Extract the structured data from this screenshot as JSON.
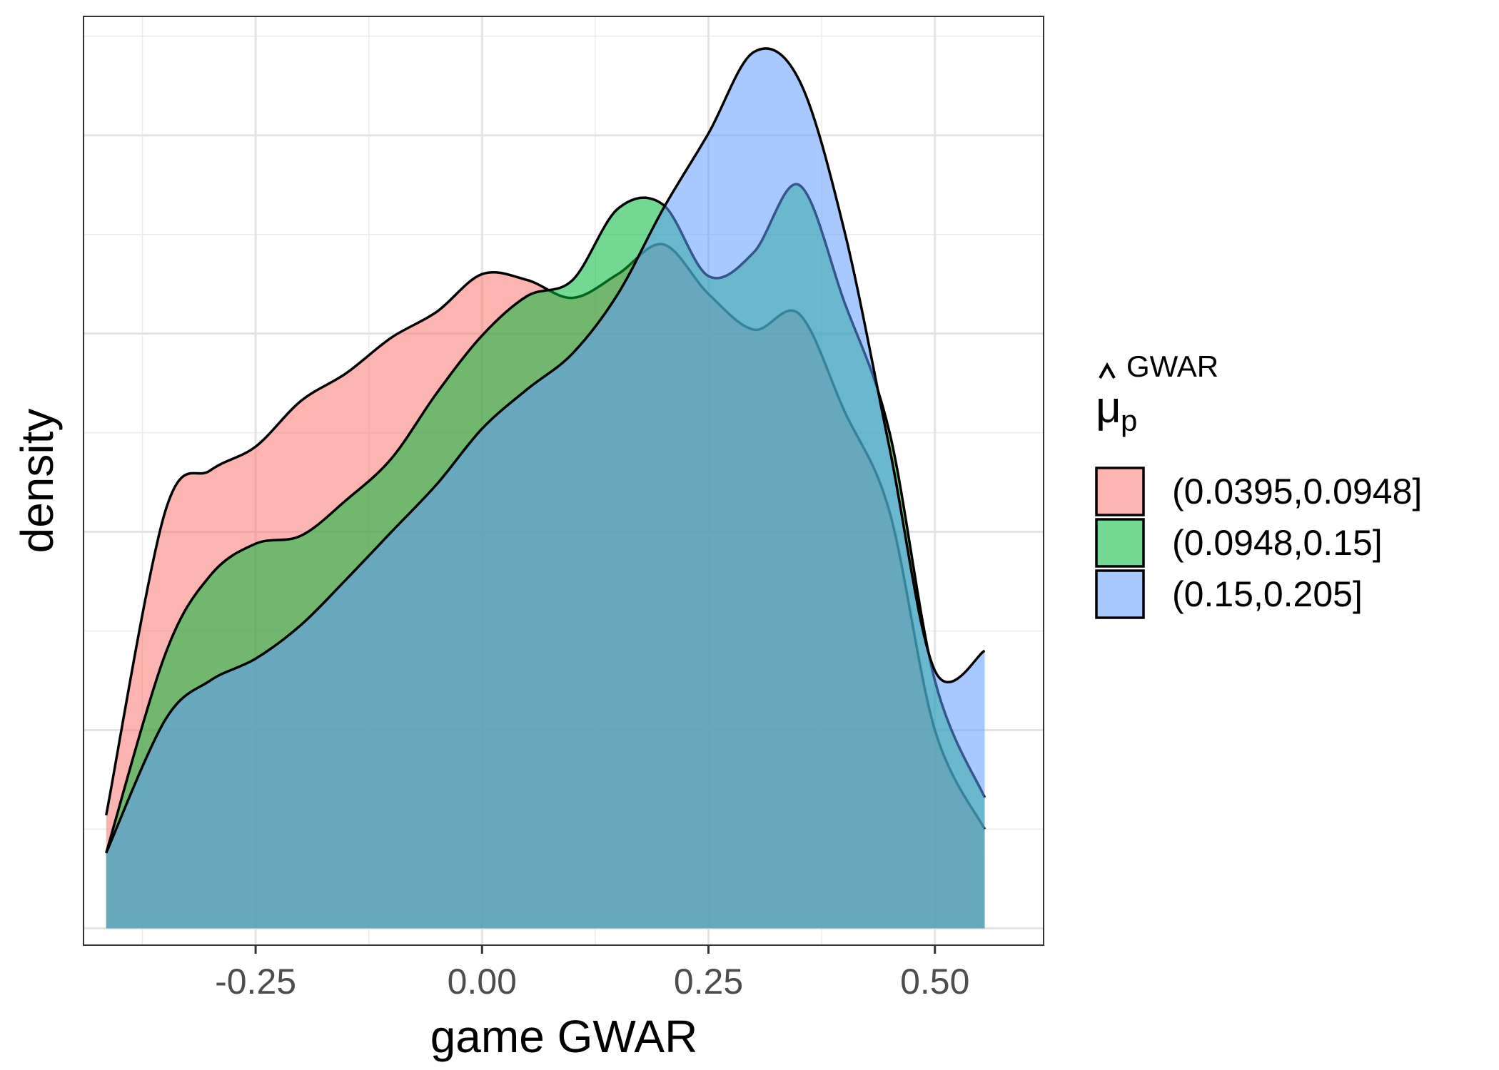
{
  "chart_data": {
    "type": "area",
    "title": "",
    "xlabel": "game GWAR",
    "ylabel": "density",
    "xlim": [
      -0.44,
      0.62
    ],
    "ylim": [
      -0.085,
      4.6
    ],
    "x_ticks": [
      -0.25,
      0.0,
      0.25,
      0.5
    ],
    "x_tick_labels": [
      "-0.25",
      "0.00",
      "0.25",
      "0.50"
    ],
    "y_tick_labels_shown": false,
    "grid": true,
    "legend": {
      "position": "right",
      "title_symbol": "μ",
      "title_subscript": "p",
      "title_superscript": "GWAR",
      "entries": [
        "(0.0395,0.0948]",
        "(0.0948,0.15]",
        "(0.15,0.205]"
      ]
    },
    "x": [
      -0.415,
      -0.35,
      -0.3,
      -0.25,
      -0.2,
      -0.15,
      -0.1,
      -0.05,
      0.0,
      0.05,
      0.1,
      0.15,
      0.2,
      0.25,
      0.3,
      0.35,
      0.4,
      0.45,
      0.5,
      0.555
    ],
    "series": [
      {
        "name": "(0.0395,0.0948]",
        "color": "#F8766D",
        "values": [
          0.57,
          2.1,
          2.31,
          2.43,
          2.66,
          2.8,
          2.98,
          3.11,
          3.3,
          3.27,
          3.18,
          3.3,
          3.45,
          3.2,
          3.02,
          3.1,
          2.61,
          2.1,
          1.0,
          0.5
        ]
      },
      {
        "name": "(0.0948,0.15]",
        "color": "#00BA38",
        "values": [
          0.38,
          1.38,
          1.78,
          1.94,
          1.98,
          2.16,
          2.37,
          2.7,
          2.99,
          3.19,
          3.27,
          3.63,
          3.65,
          3.29,
          3.41,
          3.75,
          3.16,
          2.5,
          1.25,
          0.66
        ]
      },
      {
        "name": "(0.15,0.205]",
        "color": "#619CFF",
        "values": [
          0.38,
          1.05,
          1.25,
          1.36,
          1.53,
          1.76,
          2.0,
          2.24,
          2.52,
          2.72,
          2.9,
          3.2,
          3.63,
          4.01,
          4.42,
          4.28,
          3.52,
          2.42,
          1.3,
          1.4
        ]
      }
    ]
  }
}
